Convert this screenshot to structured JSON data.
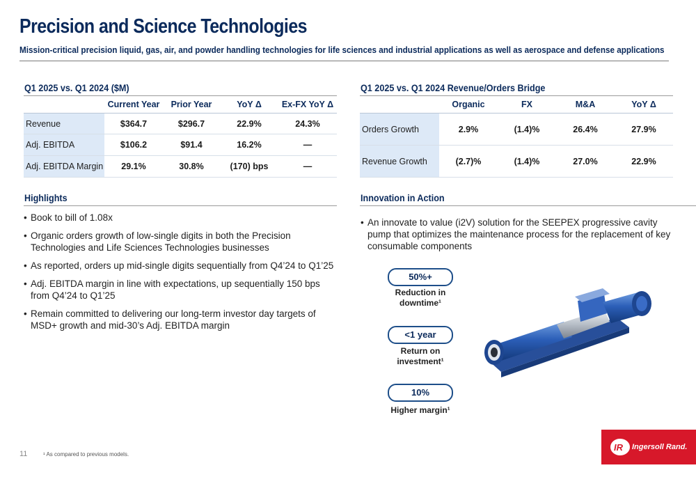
{
  "header": {
    "title": "Precision and Science Technologies",
    "subtitle": "Mission-critical precision liquid, gas, air, and powder handling technologies for life sciences and industrial applications as well as aerospace and defense applications"
  },
  "financials": {
    "heading": "Q1 2025 vs. Q1 2024 ($M)",
    "columns": [
      "Current Year",
      "Prior Year",
      "YoY Δ",
      "Ex-FX YoY Δ"
    ],
    "rows": [
      {
        "label": "Revenue",
        "cells": [
          "$364.7",
          "$296.7",
          "22.9%",
          "24.3%"
        ]
      },
      {
        "label": "Adj. EBITDA",
        "cells": [
          "$106.2",
          "$91.4",
          "16.2%",
          "—"
        ]
      },
      {
        "label": "Adj. EBITDA Margin",
        "cells": [
          "29.1%",
          "30.8%",
          "(170) bps",
          "—"
        ]
      }
    ]
  },
  "bridge": {
    "heading": "Q1 2025 vs. Q1 2024 Revenue/Orders Bridge",
    "columns": [
      "Organic",
      "FX",
      "M&A",
      "YoY Δ"
    ],
    "rows": [
      {
        "label": "Orders Growth",
        "cells": [
          "2.9%",
          "(1.4)%",
          "26.4%",
          "27.9%"
        ]
      },
      {
        "label": "Revenue Growth",
        "cells": [
          "(2.7)%",
          "(1.4)%",
          "27.0%",
          "22.9%"
        ]
      }
    ]
  },
  "highlights": {
    "heading": "Highlights",
    "items": [
      "Book to bill of 1.08x",
      "Organic orders growth of low-single digits in both the Precision Technologies and Life Sciences Technologies businesses",
      "As reported, orders up mid-single digits sequentially from Q4’24 to Q1’25",
      "Adj. EBITDA margin in line with expectations, up sequentially 150 bps from Q4’24 to Q1’25",
      "Remain committed to delivering our long-term investor day targets of MSD+ growth and mid-30’s Adj. EBITDA margin"
    ]
  },
  "innovation": {
    "heading": "Innovation in Action",
    "items": [
      "An innovate to value (i2V) solution for the SEEPEX progressive cavity pump that optimizes the maintenance process for the replacement of key consumable components"
    ],
    "stats": [
      {
        "value": "50%+",
        "line1": "Reduction in",
        "line2": "downtime¹"
      },
      {
        "value": "<1 year",
        "line1": "Return on",
        "line2": "investment¹"
      },
      {
        "value": "10%",
        "line1": "Higher margin¹",
        "line2": ""
      }
    ]
  },
  "footer": {
    "page_number": "11",
    "footnote": "¹ As compared to previous models.",
    "logo_text": "Ingersoll Rand."
  },
  "colors": {
    "navy": "#0b2a5b",
    "accent_blue": "#1d4e89",
    "label_fill": "#dde9f7",
    "brand_red": "#d7182a"
  },
  "icons": {
    "pump": "pump-image",
    "logo": "ingersoll-rand-logo"
  }
}
